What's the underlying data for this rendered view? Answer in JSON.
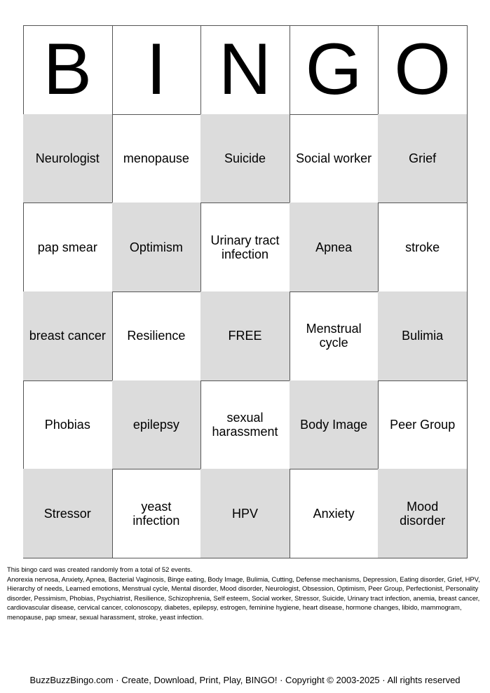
{
  "header": [
    "B",
    "I",
    "N",
    "G",
    "O"
  ],
  "cells": [
    [
      [
        "Neurologist"
      ],
      [
        "menopause"
      ],
      [
        "Suicide"
      ],
      [
        "Social worker"
      ],
      [
        "Grief"
      ]
    ],
    [
      [
        "pap smear"
      ],
      [
        "Optimism"
      ],
      [
        "Urinary tract",
        "infection"
      ],
      [
        "Apnea"
      ],
      [
        "stroke"
      ]
    ],
    [
      [
        "breast cancer"
      ],
      [
        "Resilience"
      ],
      [
        "FREE"
      ],
      [
        "Menstrual",
        "cycle"
      ],
      [
        "Bulimia"
      ]
    ],
    [
      [
        "Phobias"
      ],
      [
        "epilepsy"
      ],
      [
        "sexual",
        "harassment"
      ],
      [
        "Body Image"
      ],
      [
        "Peer Group"
      ]
    ],
    [
      [
        "Stressor"
      ],
      [
        "yeast",
        "infection"
      ],
      [
        "HPV"
      ],
      [
        "Anxiety"
      ],
      [
        "Mood",
        "disorder"
      ]
    ]
  ],
  "footer": {
    "note": "This bingo card was created randomly from a total of 52 events.",
    "list": "Anorexia nervosa, Anxiety, Apnea, Bacterial Vaginosis, Binge eating, Body Image, Bulimia, Cutting, Defense mechanisms, Depression, Eating disorder, Grief, HPV, Hierarchy of needs, Learned emotions, Menstrual cycle, Mental disorder, Mood disorder, Neurologist, Obsession, Optimism, Peer Group, Perfectionist, Personality disorder, Pessimism, Phobias, Psychiatrist, Resilience, Schizophrenia, Self esteem, Social worker, Stressor, Suicide, Urinary tract infection, anemia, breast cancer, cardiovascular disease, cervical cancer, colonoscopy, diabetes, epilepsy, estrogen, feminine hygiene, heart disease, hormone changes, libido, mammogram, menopause, pap smear, sexual harassment, stroke, yeast infection.",
    "credit": "BuzzBuzzBingo.com · Create, Download, Print, Play, BINGO! · Copyright © 2003-2025 · All rights reserved"
  }
}
